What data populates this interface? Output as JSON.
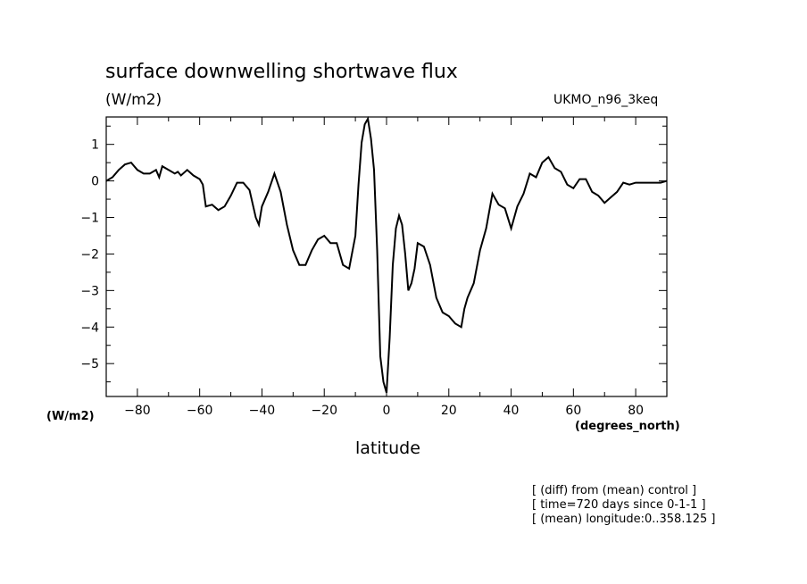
{
  "title": "surface downwelling shortwave flux",
  "units": "(W/m2)",
  "model_label": "UKMO_n96_3keq",
  "y_units_label": "(W/m2)",
  "x_units_label": "(degrees_north)",
  "notes": [
    "[ (diff) from (mean) control ]",
    "[ time=720 days since 0-1-1 ]",
    "[ (mean) longitude:0..358.125 ]"
  ],
  "chart_data": {
    "type": "line",
    "title": "surface downwelling shortwave flux",
    "xlabel": "latitude",
    "ylabel": "(W/m2)",
    "xlim": [
      -90,
      90
    ],
    "ylim": [
      -5.9,
      1.75
    ],
    "xticks": [
      -80,
      -60,
      -40,
      -20,
      0,
      20,
      40,
      60,
      80
    ],
    "xtick_labels": [
      "−80",
      "−60",
      "−40",
      "−20",
      "0",
      "20",
      "40",
      "60",
      "80"
    ],
    "yticks": [
      -5,
      -4,
      -3,
      -2,
      -1,
      0,
      1
    ],
    "ytick_labels": [
      "−5",
      "−4",
      "−3",
      "−2",
      "−1",
      "0",
      "1"
    ],
    "grid": false,
    "series": [
      {
        "x": [
          -90,
          -88,
          -86,
          -84,
          -82,
          -80,
          -78,
          -76,
          -74,
          -73,
          -72,
          -70,
          -68,
          -67,
          -66,
          -64,
          -62,
          -60,
          -59,
          -58,
          -56,
          -54,
          -52,
          -50,
          -48,
          -46,
          -44,
          -42,
          -41,
          -40,
          -38,
          -36,
          -34,
          -32,
          -30,
          -28,
          -26,
          -25,
          -24,
          -22,
          -20,
          -18,
          -16,
          -14,
          -12,
          -10,
          -9,
          -8,
          -7,
          -6,
          -5,
          -4,
          -3,
          -2,
          -1,
          0,
          1,
          2,
          3,
          4,
          5,
          6,
          7,
          8,
          9,
          10,
          12,
          14,
          16,
          18,
          20,
          22,
          24,
          25,
          26,
          28,
          30,
          32,
          34,
          36,
          38,
          40,
          42,
          44,
          46,
          48,
          50,
          52,
          54,
          56,
          58,
          60,
          62,
          64,
          66,
          68,
          70,
          72,
          74,
          76,
          78,
          80,
          82,
          84,
          86,
          88,
          90
        ],
        "values": [
          0.0,
          0.1,
          0.3,
          0.45,
          0.5,
          0.3,
          0.2,
          0.2,
          0.3,
          0.1,
          0.4,
          0.3,
          0.2,
          0.25,
          0.15,
          0.3,
          0.15,
          0.05,
          -0.1,
          -0.7,
          -0.65,
          -0.8,
          -0.7,
          -0.4,
          -0.05,
          -0.05,
          -0.25,
          -1.0,
          -1.2,
          -0.7,
          -0.3,
          0.2,
          -0.3,
          -1.2,
          -1.9,
          -2.3,
          -2.3,
          -2.1,
          -1.9,
          -1.6,
          -1.5,
          -1.7,
          -1.7,
          -2.3,
          -2.4,
          -1.5,
          -0.1,
          1.05,
          1.55,
          1.7,
          1.15,
          0.3,
          -1.9,
          -4.8,
          -5.5,
          -5.8,
          -4.3,
          -2.3,
          -1.3,
          -0.95,
          -1.2,
          -2.0,
          -3.0,
          -2.8,
          -2.4,
          -1.7,
          -1.8,
          -2.3,
          -3.2,
          -3.6,
          -3.7,
          -3.9,
          -4.0,
          -3.5,
          -3.2,
          -2.8,
          -1.9,
          -1.3,
          -0.35,
          -0.65,
          -0.75,
          -1.3,
          -0.7,
          -0.35,
          0.2,
          0.1,
          0.5,
          0.65,
          0.35,
          0.25,
          -0.1,
          -0.2,
          0.05,
          0.05,
          -0.3,
          -0.4,
          -0.6,
          -0.45,
          -0.3,
          -0.05,
          -0.1,
          -0.05,
          -0.05,
          -0.05,
          -0.05,
          -0.05,
          0.0
        ]
      }
    ]
  }
}
